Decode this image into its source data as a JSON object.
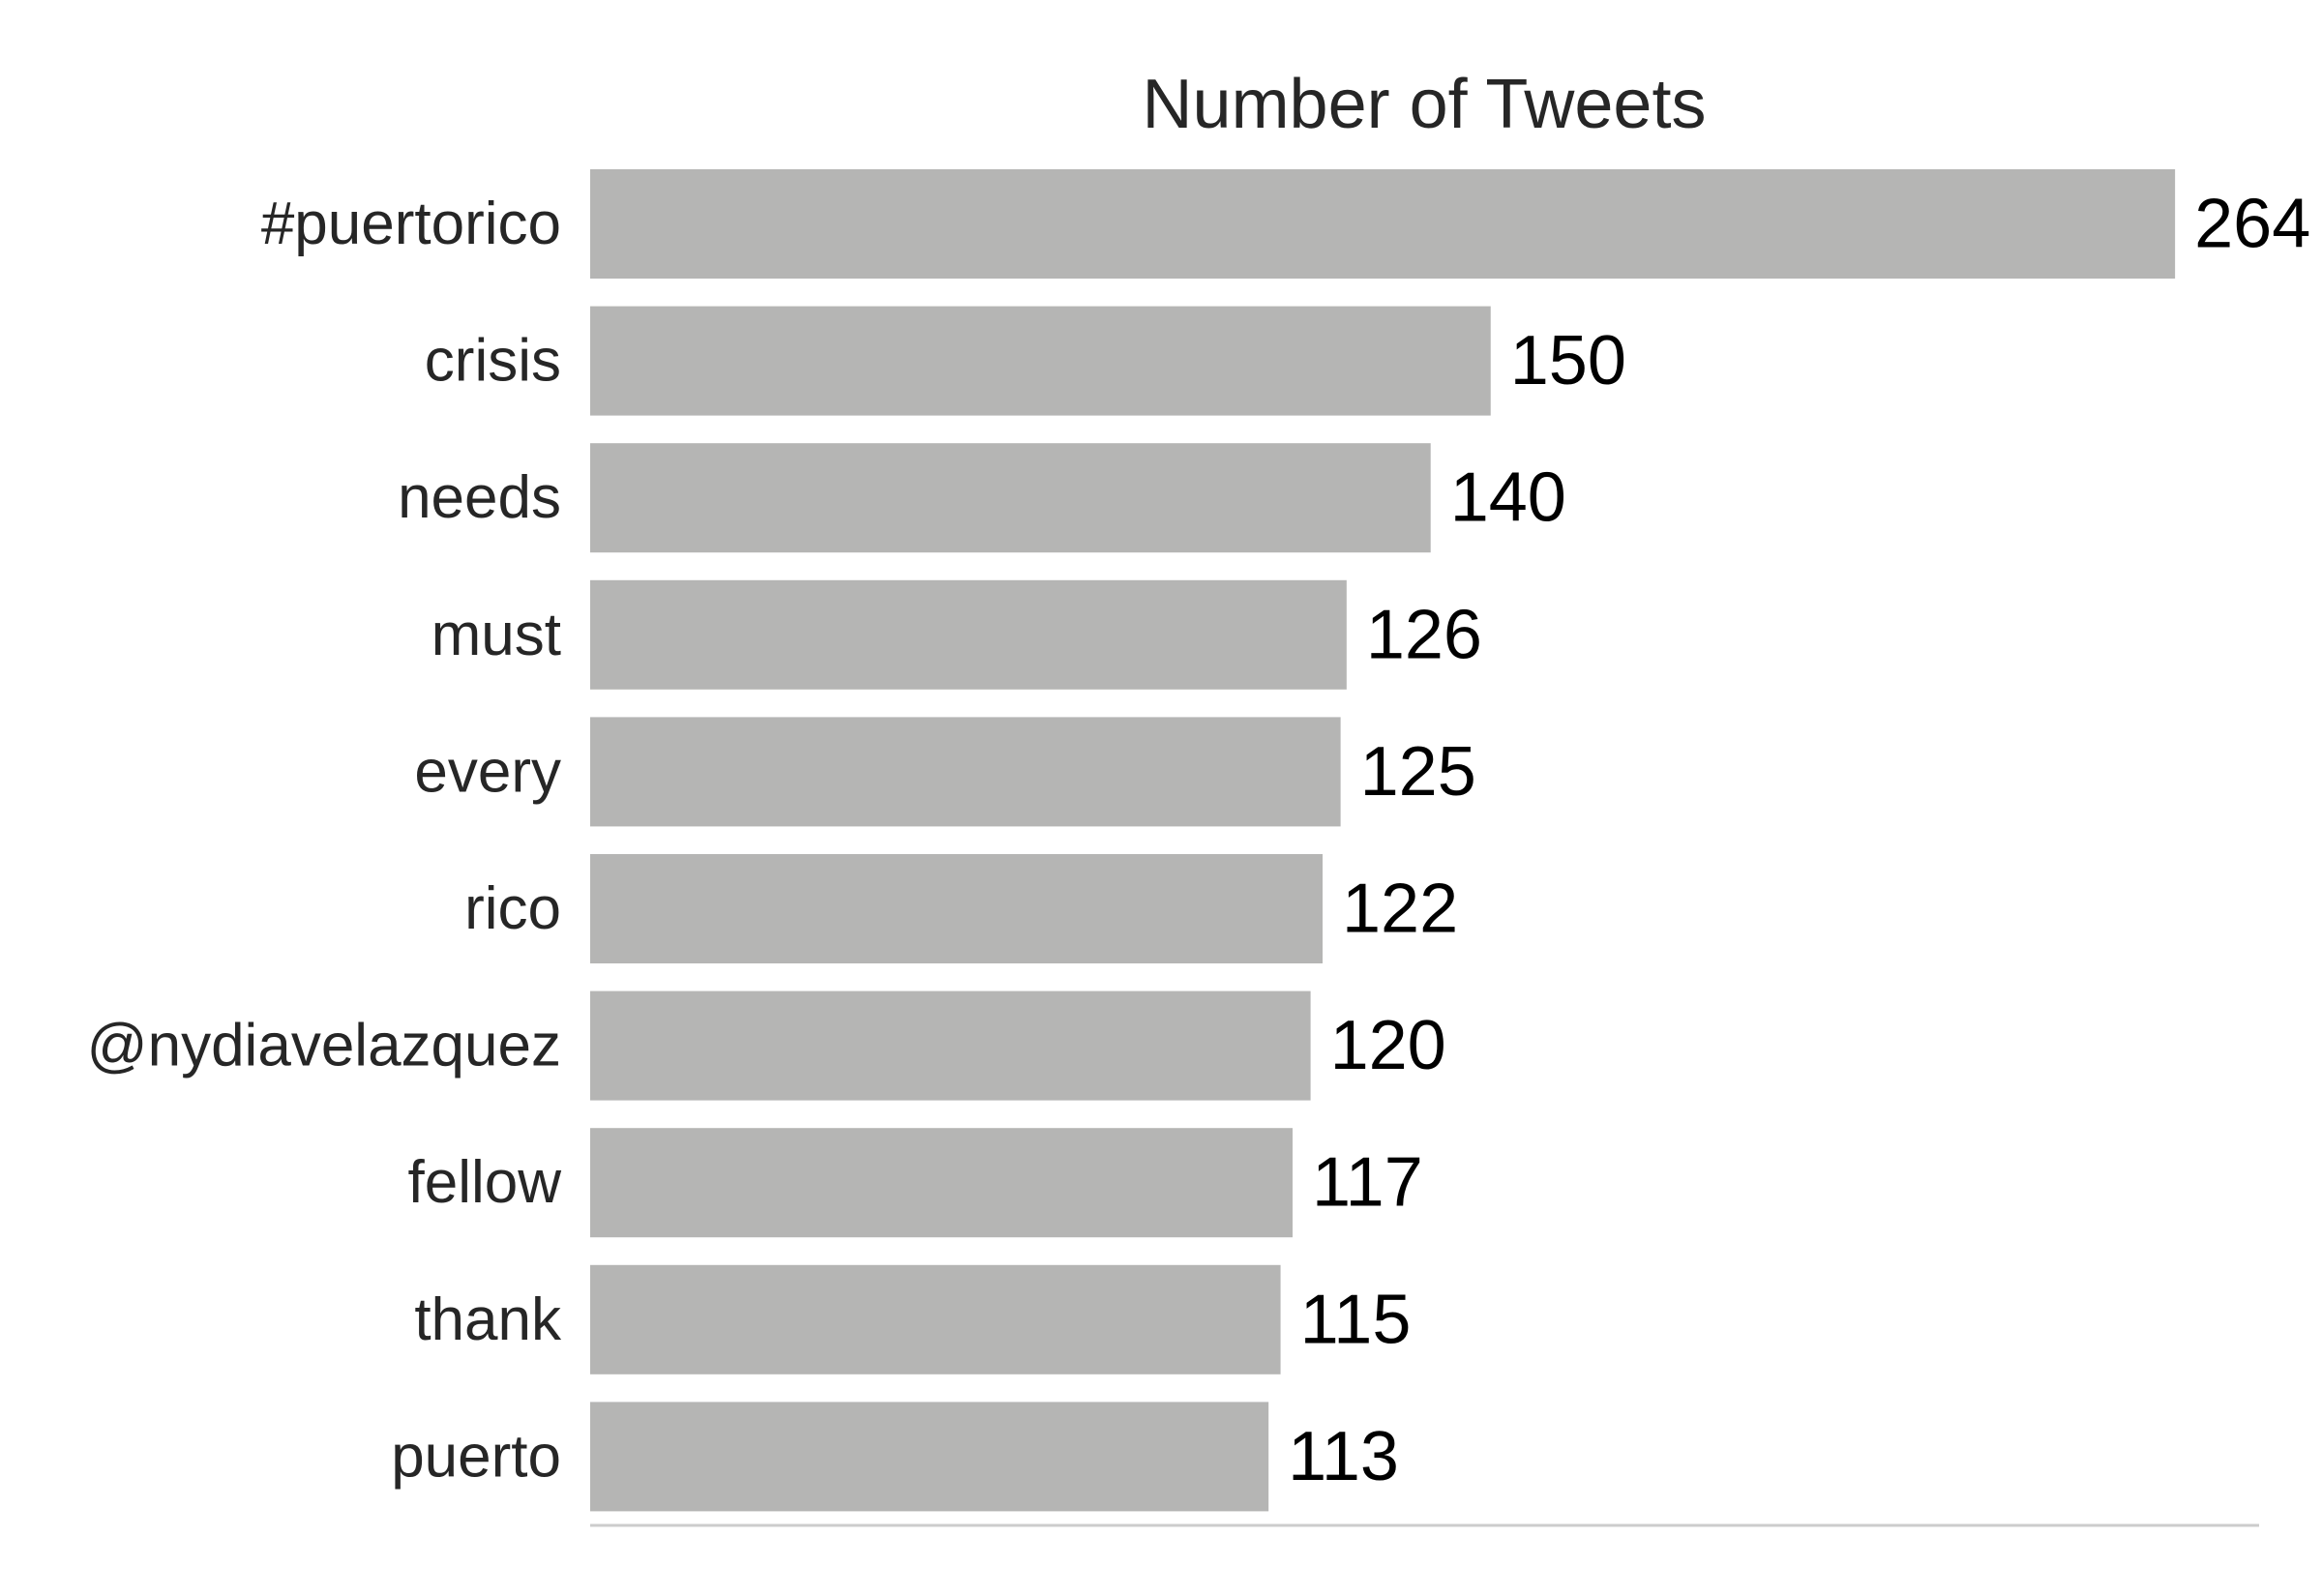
{
  "chart_data": {
    "type": "bar",
    "orientation": "horizontal",
    "title": "Number of Tweets",
    "categories": [
      "#puertorico",
      "crisis",
      "needs",
      "must",
      "every",
      "rico",
      "@nydiavelazquez",
      "fellow",
      "thank",
      "puerto"
    ],
    "values": [
      264,
      150,
      140,
      126,
      125,
      122,
      120,
      117,
      115,
      113
    ],
    "xlim": [
      0,
      278
    ],
    "grid": false,
    "legend": "none",
    "bar_color": "#b5b5b4",
    "axis_color": "#cccccc"
  }
}
